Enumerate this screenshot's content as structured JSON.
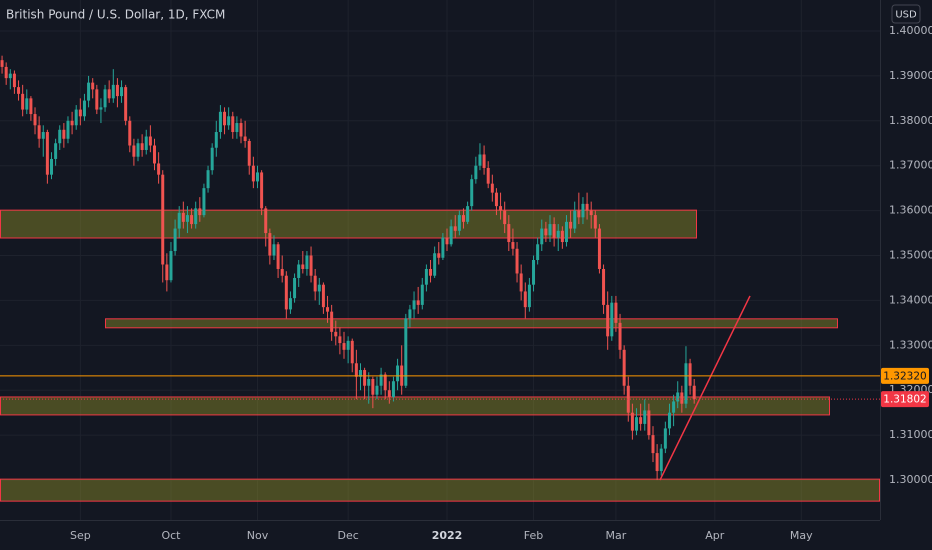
{
  "chart_data": {
    "type": "candlestick",
    "title": "British Pound / U.S. Dollar, 1D, FXCM",
    "currency": "USD",
    "up_color": "#26a69a",
    "down_color": "#ef5350",
    "xlim": [
      -0.5,
      213.1
    ],
    "xticks": [
      {
        "value": 19,
        "label": "Sep"
      },
      {
        "value": 41,
        "label": "Oct"
      },
      {
        "value": 62,
        "label": "Nov"
      },
      {
        "value": 84,
        "label": "Dec"
      },
      {
        "value": 108,
        "label": "2022"
      },
      {
        "value": 129,
        "label": "Feb"
      },
      {
        "value": 149,
        "label": "Mar"
      },
      {
        "value": 173,
        "label": "Apr"
      },
      {
        "value": 194,
        "label": "May"
      }
    ],
    "ylim": [
      1.2911,
      1.4069
    ],
    "yticks": [
      {
        "value": 1.3,
        "label": "1.30000"
      },
      {
        "value": 1.31,
        "label": "1.31000"
      },
      {
        "value": 1.32,
        "label": "1.32000"
      },
      {
        "value": 1.33,
        "label": "1.33000"
      },
      {
        "value": 1.34,
        "label": "1.34000"
      },
      {
        "value": 1.35,
        "label": "1.35000"
      },
      {
        "value": 1.36,
        "label": "1.36000"
      },
      {
        "value": 1.37,
        "label": "1.37000"
      },
      {
        "value": 1.38,
        "label": "1.38000"
      },
      {
        "value": 1.39,
        "label": "1.39000"
      },
      {
        "value": 1.4,
        "label": "1.40000"
      }
    ],
    "grid": true,
    "zones": [
      {
        "top": 1.3601,
        "bottom": 1.3539
      },
      {
        "top": 1.3359,
        "bottom": 1.3339
      },
      {
        "top": 1.3185,
        "bottom": 1.3145
      },
      {
        "top": 1.3002,
        "bottom": 1.2953
      }
    ],
    "zone_color": "#f23645",
    "trendline": {
      "from": 1.3,
      "to": 1.341,
      "color": "#f23645"
    },
    "levels": [
      {
        "value": 1.3232,
        "label": "1.32320",
        "color": "#ff9800"
      },
      {
        "value": 1.31802,
        "label": "1.31802",
        "color": "#f23645"
      }
    ],
    "candles": [
      [
        1.3935,
        1.3945,
        1.3905,
        1.392
      ],
      [
        1.392,
        1.393,
        1.388,
        1.3895
      ],
      [
        1.3895,
        1.3915,
        1.387,
        1.3905
      ],
      [
        1.3905,
        1.3912,
        1.386,
        1.3875
      ],
      [
        1.3875,
        1.389,
        1.3845,
        1.386
      ],
      [
        1.386,
        1.388,
        1.381,
        1.3825
      ],
      [
        1.3825,
        1.387,
        1.3815,
        1.385
      ],
      [
        1.385,
        1.3855,
        1.38,
        1.3815
      ],
      [
        1.3815,
        1.383,
        1.377,
        1.379
      ],
      [
        1.379,
        1.381,
        1.374,
        1.376
      ],
      [
        1.376,
        1.379,
        1.372,
        1.3775
      ],
      [
        1.3775,
        1.378,
        1.366,
        1.368
      ],
      [
        1.368,
        1.373,
        1.367,
        1.3715
      ],
      [
        1.3715,
        1.376,
        1.37,
        1.375
      ],
      [
        1.375,
        1.379,
        1.3735,
        1.378
      ],
      [
        1.378,
        1.3795,
        1.374,
        1.376
      ],
      [
        1.376,
        1.381,
        1.375,
        1.38
      ],
      [
        1.38,
        1.382,
        1.377,
        1.379
      ],
      [
        1.379,
        1.3835,
        1.378,
        1.3825
      ],
      [
        1.3825,
        1.385,
        1.379,
        1.381
      ],
      [
        1.381,
        1.386,
        1.38,
        1.3845
      ],
      [
        1.3845,
        1.39,
        1.383,
        1.3885
      ],
      [
        1.3885,
        1.3895,
        1.385,
        1.387
      ],
      [
        1.387,
        1.388,
        1.3815,
        1.3825
      ],
      [
        1.3825,
        1.385,
        1.3795,
        1.383
      ],
      [
        1.383,
        1.388,
        1.382,
        1.387
      ],
      [
        1.387,
        1.389,
        1.384,
        1.385
      ],
      [
        1.385,
        1.3915,
        1.384,
        1.388
      ],
      [
        1.388,
        1.3895,
        1.383,
        1.3855
      ],
      [
        1.3855,
        1.389,
        1.384,
        1.3875
      ],
      [
        1.3875,
        1.388,
        1.379,
        1.38
      ],
      [
        1.38,
        1.381,
        1.373,
        1.3745
      ],
      [
        1.3745,
        1.376,
        1.37,
        1.372
      ],
      [
        1.372,
        1.376,
        1.371,
        1.375
      ],
      [
        1.375,
        1.377,
        1.372,
        1.3735
      ],
      [
        1.3735,
        1.378,
        1.3725,
        1.3765
      ],
      [
        1.3765,
        1.379,
        1.373,
        1.3745
      ],
      [
        1.3745,
        1.376,
        1.369,
        1.3705
      ],
      [
        1.3705,
        1.373,
        1.366,
        1.368
      ],
      [
        1.368,
        1.369,
        1.344,
        1.348
      ],
      [
        1.348,
        1.3505,
        1.342,
        1.3445
      ],
      [
        1.3445,
        1.353,
        1.344,
        1.351
      ],
      [
        1.351,
        1.358,
        1.35,
        1.356
      ],
      [
        1.356,
        1.361,
        1.354,
        1.3595
      ],
      [
        1.3595,
        1.362,
        1.356,
        1.3575
      ],
      [
        1.3575,
        1.361,
        1.355,
        1.359
      ],
      [
        1.359,
        1.3605,
        1.356,
        1.357
      ],
      [
        1.357,
        1.362,
        1.356,
        1.3605
      ],
      [
        1.3605,
        1.363,
        1.3575,
        1.359
      ],
      [
        1.359,
        1.366,
        1.3585,
        1.365
      ],
      [
        1.365,
        1.37,
        1.364,
        1.369
      ],
      [
        1.369,
        1.375,
        1.368,
        1.374
      ],
      [
        1.374,
        1.38,
        1.372,
        1.3775
      ],
      [
        1.3775,
        1.3835,
        1.376,
        1.382
      ],
      [
        1.382,
        1.383,
        1.377,
        1.379
      ],
      [
        1.379,
        1.383,
        1.378,
        1.381
      ],
      [
        1.381,
        1.382,
        1.376,
        1.3775
      ],
      [
        1.3775,
        1.381,
        1.376,
        1.3795
      ],
      [
        1.3795,
        1.3805,
        1.375,
        1.3765
      ],
      [
        1.3765,
        1.38,
        1.374,
        1.3755
      ],
      [
        1.3755,
        1.376,
        1.368,
        1.37
      ],
      [
        1.37,
        1.372,
        1.365,
        1.3665
      ],
      [
        1.3665,
        1.37,
        1.365,
        1.3685
      ],
      [
        1.3685,
        1.369,
        1.359,
        1.3605
      ],
      [
        1.3605,
        1.361,
        1.352,
        1.355
      ],
      [
        1.355,
        1.356,
        1.348,
        1.35
      ],
      [
        1.35,
        1.3545,
        1.349,
        1.3525
      ],
      [
        1.3525,
        1.353,
        1.345,
        1.347
      ],
      [
        1.347,
        1.35,
        1.344,
        1.3455
      ],
      [
        1.3455,
        1.3465,
        1.336,
        1.338
      ],
      [
        1.338,
        1.342,
        1.337,
        1.3405
      ],
      [
        1.3405,
        1.346,
        1.3395,
        1.345
      ],
      [
        1.345,
        1.349,
        1.343,
        1.348
      ],
      [
        1.348,
        1.351,
        1.346,
        1.347
      ],
      [
        1.347,
        1.351,
        1.3455,
        1.35
      ],
      [
        1.35,
        1.352,
        1.344,
        1.3455
      ],
      [
        1.3455,
        1.347,
        1.34,
        1.342
      ],
      [
        1.342,
        1.345,
        1.339,
        1.3435
      ],
      [
        1.3435,
        1.344,
        1.337,
        1.3385
      ],
      [
        1.3385,
        1.341,
        1.335,
        1.3375
      ],
      [
        1.3375,
        1.339,
        1.331,
        1.333
      ],
      [
        1.333,
        1.3355,
        1.33,
        1.332
      ],
      [
        1.332,
        1.334,
        1.328,
        1.3305
      ],
      [
        1.3305,
        1.333,
        1.327,
        1.329
      ],
      [
        1.329,
        1.332,
        1.326,
        1.331
      ],
      [
        1.331,
        1.3315,
        1.324,
        1.326
      ],
      [
        1.326,
        1.329,
        1.318,
        1.323
      ],
      [
        1.323,
        1.326,
        1.32,
        1.3245
      ],
      [
        1.3245,
        1.325,
        1.318,
        1.321
      ],
      [
        1.321,
        1.324,
        1.317,
        1.3225
      ],
      [
        1.3225,
        1.323,
        1.316,
        1.319
      ],
      [
        1.319,
        1.323,
        1.318,
        1.321
      ],
      [
        1.321,
        1.325,
        1.319,
        1.3235
      ],
      [
        1.3235,
        1.324,
        1.318,
        1.32
      ],
      [
        1.32,
        1.322,
        1.317,
        1.3185
      ],
      [
        1.3185,
        1.323,
        1.3175,
        1.322
      ],
      [
        1.322,
        1.327,
        1.32,
        1.3255
      ],
      [
        1.3255,
        1.33,
        1.319,
        1.321
      ],
      [
        1.321,
        1.337,
        1.3205,
        1.336
      ],
      [
        1.336,
        1.339,
        1.334,
        1.338
      ],
      [
        1.338,
        1.342,
        1.336,
        1.34
      ],
      [
        1.34,
        1.343,
        1.337,
        1.339
      ],
      [
        1.339,
        1.345,
        1.338,
        1.3435
      ],
      [
        1.3435,
        1.348,
        1.342,
        1.347
      ],
      [
        1.347,
        1.349,
        1.344,
        1.3455
      ],
      [
        1.3455,
        1.352,
        1.345,
        1.3505
      ],
      [
        1.3505,
        1.353,
        1.348,
        1.3495
      ],
      [
        1.3495,
        1.355,
        1.349,
        1.354
      ],
      [
        1.354,
        1.356,
        1.351,
        1.3525
      ],
      [
        1.3525,
        1.358,
        1.352,
        1.3565
      ],
      [
        1.3565,
        1.359,
        1.354,
        1.3555
      ],
      [
        1.3555,
        1.36,
        1.3545,
        1.359
      ],
      [
        1.359,
        1.3605,
        1.356,
        1.3575
      ],
      [
        1.3575,
        1.362,
        1.357,
        1.361
      ],
      [
        1.361,
        1.368,
        1.36,
        1.367
      ],
      [
        1.367,
        1.372,
        1.366,
        1.37
      ],
      [
        1.37,
        1.375,
        1.369,
        1.3725
      ],
      [
        1.3725,
        1.3745,
        1.368,
        1.3695
      ],
      [
        1.3695,
        1.371,
        1.365,
        1.366
      ],
      [
        1.366,
        1.368,
        1.362,
        1.364
      ],
      [
        1.364,
        1.365,
        1.359,
        1.361
      ],
      [
        1.361,
        1.364,
        1.358,
        1.36
      ],
      [
        1.36,
        1.362,
        1.355,
        1.357
      ],
      [
        1.357,
        1.359,
        1.351,
        1.353
      ],
      [
        1.353,
        1.356,
        1.35,
        1.3515
      ],
      [
        1.3515,
        1.353,
        1.344,
        1.346
      ],
      [
        1.346,
        1.348,
        1.34,
        1.342
      ],
      [
        1.342,
        1.344,
        1.336,
        1.3385
      ],
      [
        1.3385,
        1.345,
        1.3375,
        1.3435
      ],
      [
        1.3435,
        1.35,
        1.342,
        1.349
      ],
      [
        1.349,
        1.354,
        1.348,
        1.3525
      ],
      [
        1.3525,
        1.358,
        1.351,
        1.356
      ],
      [
        1.356,
        1.3575,
        1.353,
        1.3545
      ],
      [
        1.3545,
        1.359,
        1.353,
        1.357
      ],
      [
        1.357,
        1.3585,
        1.352,
        1.354
      ],
      [
        1.354,
        1.357,
        1.351,
        1.3555
      ],
      [
        1.3555,
        1.3565,
        1.3515,
        1.353
      ],
      [
        1.353,
        1.359,
        1.352,
        1.3575
      ],
      [
        1.3575,
        1.36,
        1.354,
        1.356
      ],
      [
        1.356,
        1.362,
        1.355,
        1.36
      ],
      [
        1.36,
        1.364,
        1.357,
        1.3585
      ],
      [
        1.3585,
        1.363,
        1.357,
        1.3615
      ],
      [
        1.3615,
        1.364,
        1.358,
        1.36
      ],
      [
        1.36,
        1.362,
        1.356,
        1.359
      ],
      [
        1.359,
        1.36,
        1.354,
        1.356
      ],
      [
        1.356,
        1.357,
        1.346,
        1.347
      ],
      [
        1.347,
        1.348,
        1.337,
        1.339
      ],
      [
        1.339,
        1.342,
        1.329,
        1.332
      ],
      [
        1.332,
        1.341,
        1.331,
        1.3395
      ],
      [
        1.3395,
        1.341,
        1.333,
        1.335
      ],
      [
        1.335,
        1.337,
        1.327,
        1.329
      ],
      [
        1.329,
        1.33,
        1.319,
        1.321
      ],
      [
        1.321,
        1.323,
        1.313,
        1.315
      ],
      [
        1.315,
        1.317,
        1.309,
        1.311
      ],
      [
        1.311,
        1.316,
        1.31,
        1.314
      ],
      [
        1.314,
        1.317,
        1.311,
        1.3125
      ],
      [
        1.3125,
        1.318,
        1.311,
        1.3155
      ],
      [
        1.3155,
        1.317,
        1.309,
        1.31
      ],
      [
        1.31,
        1.312,
        1.304,
        1.306
      ],
      [
        1.306,
        1.308,
        1.3,
        1.302
      ],
      [
        1.302,
        1.308,
        1.301,
        1.307
      ],
      [
        1.307,
        1.313,
        1.306,
        1.3115
      ],
      [
        1.3115,
        1.317,
        1.31,
        1.315
      ],
      [
        1.315,
        1.319,
        1.312,
        1.3175
      ],
      [
        1.3175,
        1.322,
        1.316,
        1.3195
      ],
      [
        1.3195,
        1.321,
        1.315,
        1.317
      ],
      [
        1.317,
        1.3298,
        1.316,
        1.326
      ],
      [
        1.326,
        1.327,
        1.319,
        1.321
      ],
      [
        1.321,
        1.3225,
        1.317,
        1.31802
      ]
    ]
  }
}
